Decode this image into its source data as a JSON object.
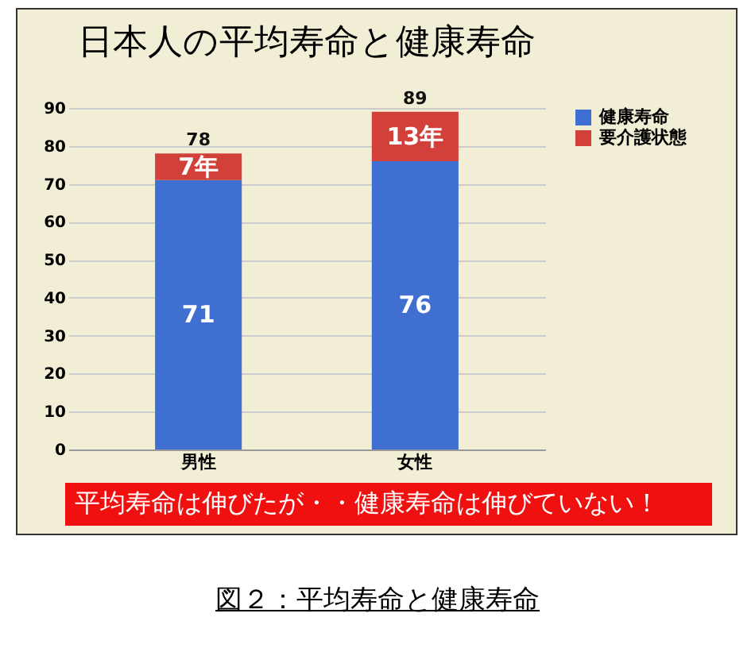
{
  "chart_data": {
    "type": "bar",
    "title": "日本人の平均寿命と健康寿命",
    "categories": [
      "男性",
      "女性"
    ],
    "stacked": true,
    "series": [
      {
        "name": "健康寿命",
        "color": "#3f6fd0",
        "values": [
          71,
          76
        ],
        "value_labels": [
          "71",
          "76"
        ]
      },
      {
        "name": "要介護状態",
        "color": "#d2403a",
        "values": [
          7,
          13
        ],
        "value_labels": [
          "7年",
          "13年"
        ]
      }
    ],
    "totals": [
      "78",
      "89"
    ],
    "ylim": [
      0,
      90
    ],
    "yticks": [
      0,
      10,
      20,
      30,
      40,
      50,
      60,
      70,
      80,
      90
    ],
    "grid": "y",
    "legend": "right",
    "annotations": [
      "平均寿命は伸びたが・・健康寿命は伸びていない！",
      "図２：平均寿命と健康寿命"
    ]
  }
}
